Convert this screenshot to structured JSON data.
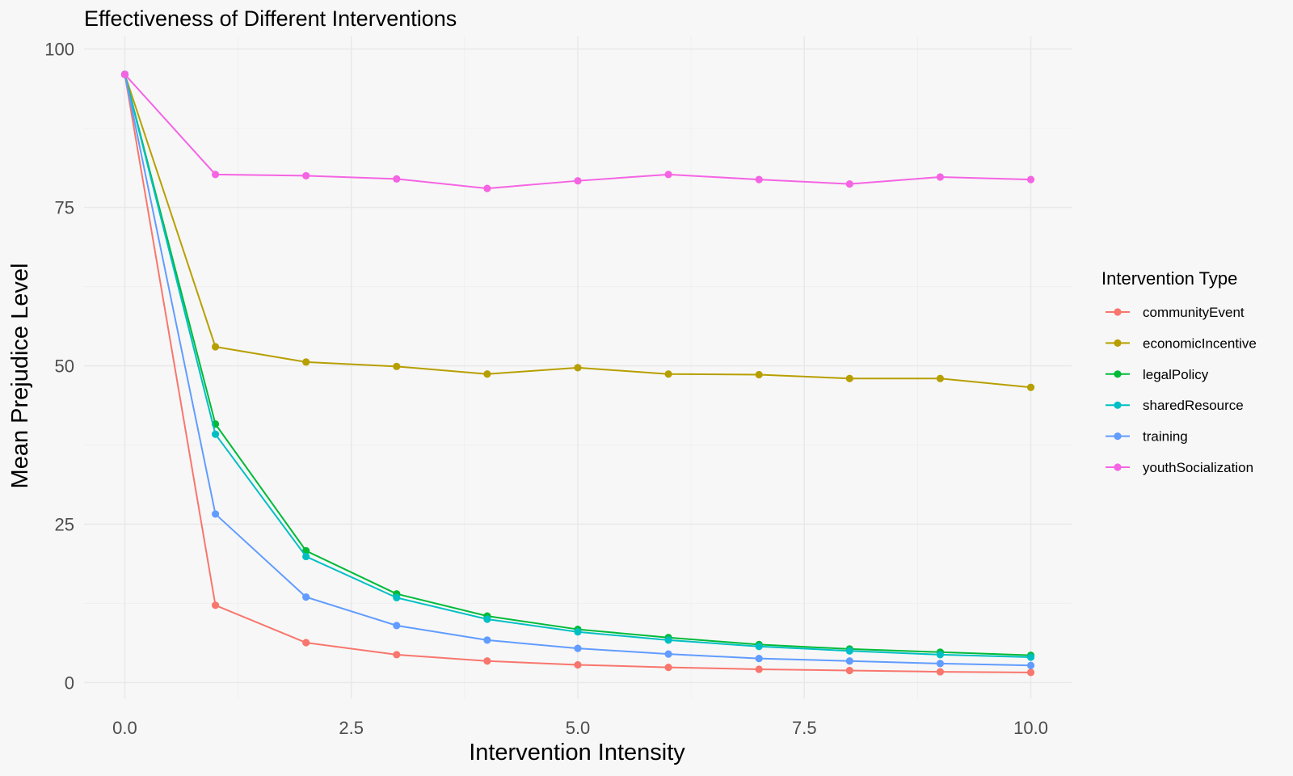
{
  "chart_data": {
    "type": "line",
    "title": "Effectiveness of Different Interventions",
    "xlabel": "Intervention Intensity",
    "ylabel": "Mean Prejudice Level",
    "xlim": [
      -0.45,
      10.45
    ],
    "ylim": [
      -2.5,
      102
    ],
    "x_ticks": [
      0,
      2.5,
      5,
      7.5,
      10
    ],
    "x_tick_labels": [
      "0.0",
      "2.5",
      "5.0",
      "7.5",
      "10.0"
    ],
    "x_minor_ticks": [
      1.25,
      3.75,
      6.25,
      8.75
    ],
    "y_ticks": [
      0,
      25,
      50,
      75,
      100
    ],
    "y_tick_labels": [
      "0",
      "25",
      "50",
      "75",
      "100"
    ],
    "y_minor_ticks": [
      12.5,
      37.5,
      62.5,
      87.5
    ],
    "grid": true,
    "legend": {
      "title": "Intervention Type",
      "placement": "right"
    },
    "x": [
      0,
      1,
      2,
      3,
      4,
      5,
      6,
      7,
      8,
      9,
      10
    ],
    "series": [
      {
        "name": "communityEvent",
        "color": "#F8766D",
        "values": [
          96,
          12.2,
          6.3,
          4.4,
          3.4,
          2.8,
          2.4,
          2.1,
          1.9,
          1.7,
          1.6
        ]
      },
      {
        "name": "economicIncentive",
        "color": "#B79F00",
        "values": [
          96,
          53,
          50.6,
          49.9,
          48.7,
          49.7,
          48.7,
          48.6,
          48.0,
          48.0,
          46.6
        ]
      },
      {
        "name": "legalPolicy",
        "color": "#00BA38",
        "values": [
          96,
          40.8,
          20.8,
          14.0,
          10.5,
          8.4,
          7.1,
          6.0,
          5.3,
          4.8,
          4.3
        ]
      },
      {
        "name": "sharedResource",
        "color": "#00BFC4",
        "values": [
          96,
          39.2,
          19.9,
          13.4,
          10.0,
          8.0,
          6.7,
          5.7,
          5.0,
          4.4,
          4.0
        ]
      },
      {
        "name": "training",
        "color": "#619CFF",
        "values": [
          96,
          26.6,
          13.5,
          9.0,
          6.7,
          5.4,
          4.5,
          3.8,
          3.4,
          3.0,
          2.7
        ]
      },
      {
        "name": "youthSocialization",
        "color": "#F564E3",
        "values": [
          96,
          80.2,
          80.0,
          79.5,
          78.0,
          79.2,
          80.2,
          79.4,
          78.7,
          79.8,
          79.4
        ]
      }
    ]
  }
}
